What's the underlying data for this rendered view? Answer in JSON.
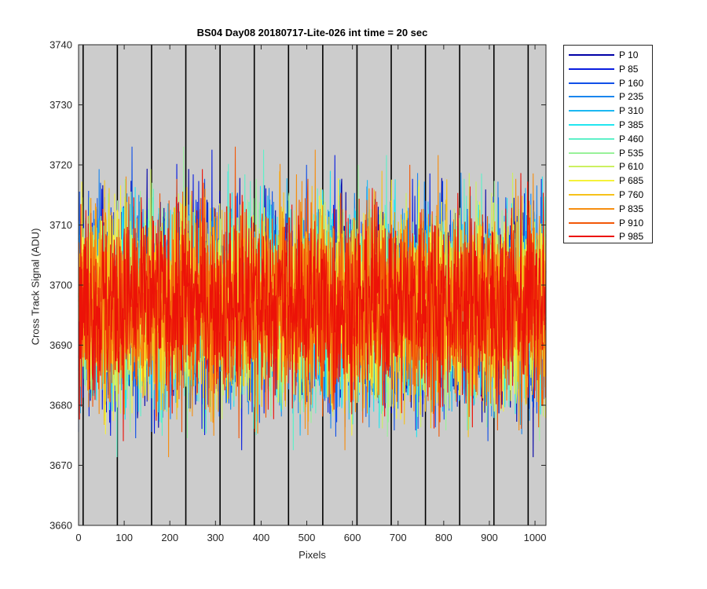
{
  "chart_data": {
    "type": "line",
    "title": "BS04 Day08 20180717-Lite-026 int time = 20 sec",
    "xlabel": "Pixels",
    "ylabel": "Cross Track Signal (ADU)",
    "xlim": [
      0,
      1024
    ],
    "ylim": [
      3660,
      3740
    ],
    "xticks": [
      0,
      100,
      200,
      300,
      400,
      500,
      600,
      700,
      800,
      900,
      1000
    ],
    "yticks": [
      3660,
      3670,
      3680,
      3690,
      3700,
      3710,
      3720,
      3730,
      3740
    ],
    "background_color": "#cccccc",
    "vertical_markers": [
      10,
      85,
      160,
      235,
      310,
      385,
      460,
      535,
      610,
      685,
      760,
      835,
      910,
      985
    ],
    "legend_placement": "outside-right-top",
    "series_summary": {
      "mean": 3697,
      "typical_range": [
        3680,
        3714
      ],
      "extreme_range": [
        3667,
        3732
      ],
      "points_per_series": 1024
    },
    "series": [
      {
        "name": "P 10",
        "color": "#0000a8"
      },
      {
        "name": "P 85",
        "color": "#0a1ee0"
      },
      {
        "name": "P 160",
        "color": "#1050e8"
      },
      {
        "name": "P 235",
        "color": "#1a86ee"
      },
      {
        "name": "P 310",
        "color": "#1cb8f2"
      },
      {
        "name": "P 385",
        "color": "#22e6f0"
      },
      {
        "name": "P 460",
        "color": "#5ef0c8"
      },
      {
        "name": "P 535",
        "color": "#98f29a"
      },
      {
        "name": "P 610",
        "color": "#ccf060"
      },
      {
        "name": "P 685",
        "color": "#f6f23a"
      },
      {
        "name": "P 760",
        "color": "#f6c21a"
      },
      {
        "name": "P 835",
        "color": "#f68e10"
      },
      {
        "name": "P 910",
        "color": "#f25808"
      },
      {
        "name": "P 985",
        "color": "#ec1208"
      }
    ]
  }
}
